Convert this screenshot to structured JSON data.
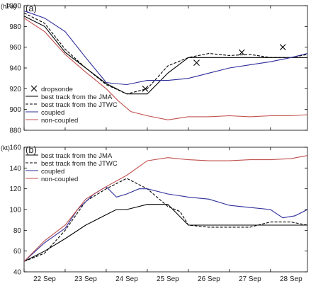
{
  "chart_data": [
    {
      "type": "line",
      "panel_label": "(a)",
      "ylabel": "(hPa)",
      "ylim": [
        880,
        1000
      ],
      "yticks": [
        880,
        900,
        920,
        940,
        960,
        980,
        1000
      ],
      "xlim": [
        22.0,
        28.9
      ],
      "grid": false,
      "legend": "lower-left",
      "series": [
        {
          "name": "best track from the JMA",
          "color": "#000000",
          "style": "solid",
          "x": [
            22.0,
            22.5,
            23.0,
            23.5,
            24.0,
            24.5,
            25.0,
            25.5,
            26.0,
            26.5,
            27.0,
            27.5,
            28.0,
            28.5,
            28.9
          ],
          "values": [
            990,
            980,
            955,
            940,
            925,
            915,
            915,
            935,
            950,
            950,
            950,
            950,
            950,
            950,
            950
          ]
        },
        {
          "name": "best track from the JTWC",
          "color": "#000000",
          "style": "dashed",
          "x": [
            22.0,
            22.5,
            23.0,
            23.5,
            24.0,
            24.5,
            24.8,
            25.0,
            25.5,
            26.0,
            26.5,
            27.0,
            27.5,
            28.0,
            28.5,
            28.9
          ],
          "values": [
            993,
            983,
            958,
            940,
            924,
            915,
            918,
            920,
            942,
            950,
            954,
            952,
            953,
            950,
            950,
            953
          ]
        },
        {
          "name": "coupled",
          "color": "#2d2d9a",
          "style": "solid",
          "x": [
            22.0,
            22.5,
            23.0,
            23.5,
            24.0,
            24.2,
            24.5,
            25.0,
            25.5,
            26.0,
            26.5,
            27.0,
            27.5,
            28.0,
            28.5,
            28.9
          ],
          "values": [
            995,
            988,
            975,
            950,
            926,
            925,
            924,
            928,
            928,
            930,
            935,
            940,
            943,
            946,
            950,
            954
          ]
        },
        {
          "name": "non-coupled",
          "color": "#c0504d",
          "style": "solid",
          "x": [
            22.0,
            22.5,
            23.0,
            23.5,
            24.0,
            24.3,
            24.6,
            25.0,
            25.5,
            26.0,
            26.5,
            27.0,
            27.5,
            28.0,
            28.5,
            28.9
          ],
          "values": [
            988,
            975,
            953,
            936,
            920,
            908,
            898,
            894,
            890,
            893,
            893,
            894,
            893,
            894,
            894,
            895
          ]
        }
      ],
      "markers": {
        "name": "dropsonde",
        "symbol": "x",
        "x": [
          24.95,
          26.2,
          27.3,
          28.3
        ],
        "values": [
          920,
          945,
          955,
          960
        ]
      }
    },
    {
      "type": "line",
      "panel_label": "(b)",
      "ylabel": "(kt)",
      "ylim": [
        40,
        160
      ],
      "yticks": [
        40,
        60,
        80,
        100,
        120,
        140,
        160
      ],
      "xlim": [
        22.0,
        28.9
      ],
      "categories": [
        "22 Sep",
        "23 Sep",
        "24 Sep",
        "25 Sep",
        "26 Sep",
        "27 Sep",
        "28 Sep"
      ],
      "grid": false,
      "legend": "top-left",
      "series": [
        {
          "name": "best track from the JMA",
          "color": "#000000",
          "style": "solid",
          "x": [
            22.0,
            22.5,
            23.0,
            23.5,
            24.0,
            24.25,
            24.5,
            25.0,
            25.5,
            26.0,
            26.5,
            27.0,
            27.5,
            28.0,
            28.5,
            28.9
          ],
          "values": [
            50,
            60,
            72,
            85,
            95,
            100,
            100,
            105,
            105,
            85,
            85,
            85,
            85,
            85,
            85,
            85
          ]
        },
        {
          "name": "best track from the JTWC",
          "color": "#000000",
          "style": "dashed",
          "x": [
            22.0,
            22.5,
            23.0,
            23.5,
            24.0,
            24.5,
            25.0,
            25.5,
            25.8,
            26.0,
            26.5,
            27.0,
            27.5,
            28.0,
            28.5,
            28.9
          ],
          "values": [
            50,
            58,
            80,
            108,
            120,
            130,
            120,
            103,
            98,
            85,
            83,
            83,
            83,
            88,
            88,
            85
          ]
        },
        {
          "name": "coupled",
          "color": "#2d2d9a",
          "style": "solid",
          "x": [
            22.0,
            22.5,
            23.0,
            23.3,
            23.7,
            24.0,
            24.25,
            24.5,
            24.8,
            25.0,
            25.5,
            26.0,
            26.5,
            27.0,
            27.5,
            28.0,
            28.3,
            28.6,
            28.9
          ],
          "values": [
            50,
            68,
            82,
            100,
            115,
            122,
            112,
            115,
            120,
            120,
            115,
            112,
            110,
            104,
            102,
            100,
            92,
            94,
            100
          ]
        },
        {
          "name": "non-coupled",
          "color": "#c0504d",
          "style": "solid",
          "x": [
            22.0,
            22.5,
            23.0,
            23.5,
            24.0,
            24.5,
            25.0,
            25.5,
            26.0,
            26.5,
            27.0,
            27.5,
            28.0,
            28.5,
            28.9
          ],
          "values": [
            50,
            70,
            85,
            110,
            122,
            133,
            147,
            150,
            148,
            147,
            147,
            148,
            148,
            149,
            152
          ]
        }
      ]
    }
  ]
}
